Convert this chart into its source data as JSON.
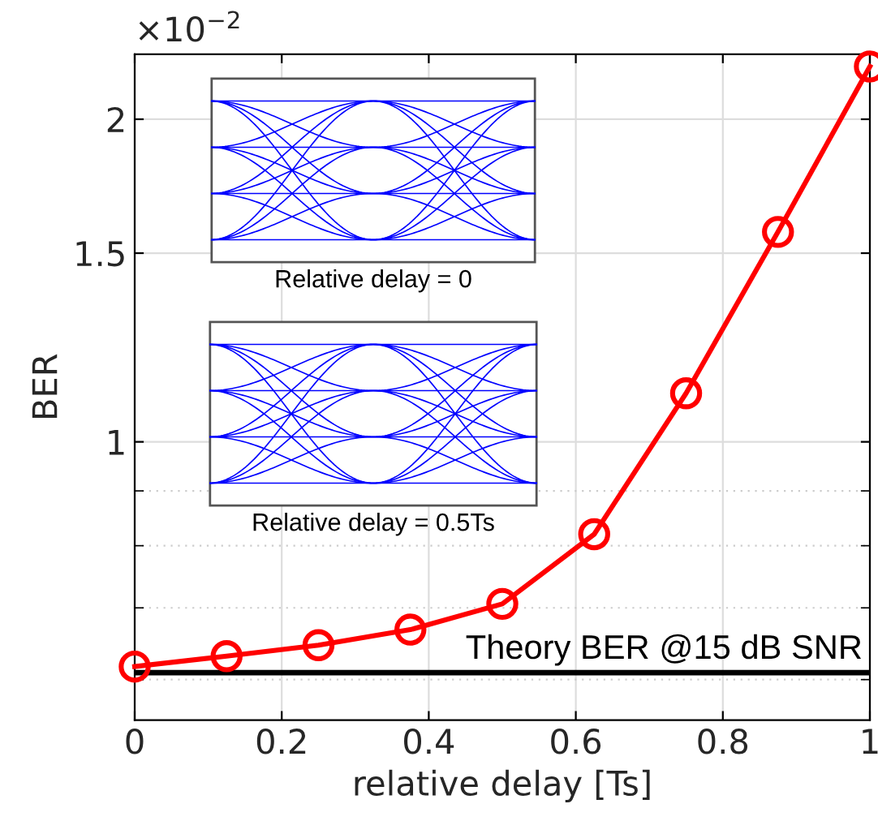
{
  "chart_data": {
    "type": "line",
    "xlabel": "relative delay [Ts]",
    "ylabel": "BER",
    "x": [
      0,
      0.125,
      0.25,
      0.375,
      0.5,
      0.625,
      0.75,
      0.875,
      1
    ],
    "series": [
      {
        "color": "#ff0000",
        "values": [
          0.617,
          0.631,
          0.646,
          0.668,
          0.706,
          0.82,
          1.11,
          1.57,
          2.24
        ]
      }
    ],
    "marker": "circle",
    "line_style": "solid",
    "log": "y",
    "grid": true,
    "xlim": [
      0,
      1
    ],
    "xticks": [
      0,
      0.2,
      0.4,
      0.6,
      0.8,
      1
    ],
    "ylim": [
      0.55,
      2.3
    ],
    "yticks": [
      1,
      1.5,
      2
    ],
    "ref_lines": [
      {
        "axis": "y",
        "value": 0.609,
        "label": "Theory BER @15 dB SNR",
        "color": "#000000"
      }
    ],
    "annotations": [
      "×10$^{−2}$",
      "Relative delay = 0",
      "Relative delay = 0.5Ts"
    ]
  }
}
